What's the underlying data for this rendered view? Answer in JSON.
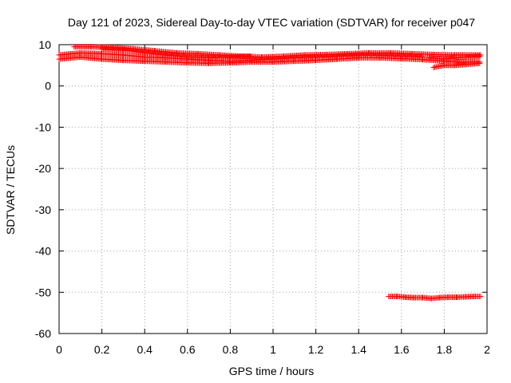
{
  "chart_data": {
    "type": "scatter",
    "title": "Day 121 of 2023, Sidereal Day-to-day VTEC variation (SDTVAR) for receiver p047",
    "xlabel": "GPS time / hours",
    "ylabel": "SDTVAR / TECUs",
    "xlim": [
      0,
      2
    ],
    "ylim": [
      -60,
      10
    ],
    "x_ticks": [
      0,
      0.2,
      0.4,
      0.6,
      0.8,
      1,
      1.2,
      1.4,
      1.6,
      1.8,
      2
    ],
    "x_tick_labels": [
      "0",
      "0.2",
      "0.4",
      "0.6",
      "0.8",
      "1",
      "1.2",
      "1.4",
      "1.6",
      "1.8",
      "2"
    ],
    "y_ticks": [
      -60,
      -50,
      -40,
      -30,
      -20,
      -10,
      0,
      10
    ],
    "y_tick_labels": [
      "-60",
      "-50",
      "-40",
      "-30",
      "-20",
      "-10",
      "0",
      "10"
    ],
    "grid": true,
    "marker": "+",
    "marker_color": "#ff0000",
    "series": [
      {
        "name": "track-1",
        "x": [
          0.0,
          0.1,
          0.2,
          0.3,
          0.4,
          0.5,
          0.6,
          0.7,
          0.8,
          0.9,
          1.0,
          1.1,
          1.2,
          1.3,
          1.4,
          1.5,
          1.6,
          1.7,
          1.8,
          1.9,
          1.97
        ],
        "y": [
          6.5,
          7.0,
          6.5,
          6.2,
          6.0,
          5.8,
          5.6,
          5.5,
          5.6,
          5.8,
          5.8,
          6.0,
          6.2,
          6.5,
          6.8,
          6.8,
          6.6,
          6.4,
          6.0,
          5.8,
          5.8
        ]
      },
      {
        "name": "track-2",
        "x": [
          0.0,
          0.1,
          0.2,
          0.3,
          0.4,
          0.5,
          0.6,
          0.7,
          0.8,
          0.9,
          1.0,
          1.1,
          1.2,
          1.3,
          1.4,
          1.5,
          1.6,
          1.7
        ],
        "y": [
          7.5,
          8.0,
          7.8,
          7.5,
          7.0,
          6.8,
          6.5,
          6.2,
          6.0,
          6.2,
          6.5,
          6.8,
          7.0,
          7.2,
          7.5,
          7.4,
          7.2,
          7.0
        ]
      },
      {
        "name": "track-3",
        "x": [
          0.07,
          0.15,
          0.25,
          0.35,
          0.45,
          0.55,
          0.65,
          0.75,
          0.85,
          0.95,
          1.05,
          1.15,
          1.25,
          1.35,
          1.45,
          1.55,
          1.65,
          1.75,
          1.85,
          1.97
        ],
        "y": [
          9.5,
          9.5,
          9.3,
          9.0,
          8.5,
          8.0,
          7.8,
          7.5,
          7.2,
          7.0,
          7.2,
          7.5,
          7.6,
          7.8,
          8.0,
          8.0,
          7.8,
          7.6,
          7.5,
          7.5
        ]
      },
      {
        "name": "track-4",
        "x": [
          0.2,
          0.3,
          0.4,
          0.5,
          0.6,
          0.7,
          0.8,
          0.9
        ],
        "y": [
          9.0,
          8.8,
          8.0,
          7.5,
          7.0,
          6.8,
          7.0,
          7.2
        ]
      },
      {
        "name": "track-5",
        "x": [
          1.75,
          1.8,
          1.85,
          1.9,
          1.97
        ],
        "y": [
          4.5,
          5.0,
          5.0,
          5.2,
          5.5
        ]
      },
      {
        "name": "track-6",
        "x": [
          1.73,
          1.8,
          1.85,
          1.9,
          1.97
        ],
        "y": [
          6.8,
          6.5,
          6.8,
          7.0,
          7.2
        ]
      },
      {
        "name": "track-low",
        "x": [
          1.54,
          1.58,
          1.62,
          1.66,
          1.7,
          1.74,
          1.78,
          1.82,
          1.86,
          1.9,
          1.94,
          1.97
        ],
        "y": [
          -51.0,
          -51.0,
          -51.2,
          -51.3,
          -51.3,
          -51.5,
          -51.3,
          -51.2,
          -51.2,
          -51.1,
          -51.0,
          -51.0
        ]
      }
    ]
  }
}
